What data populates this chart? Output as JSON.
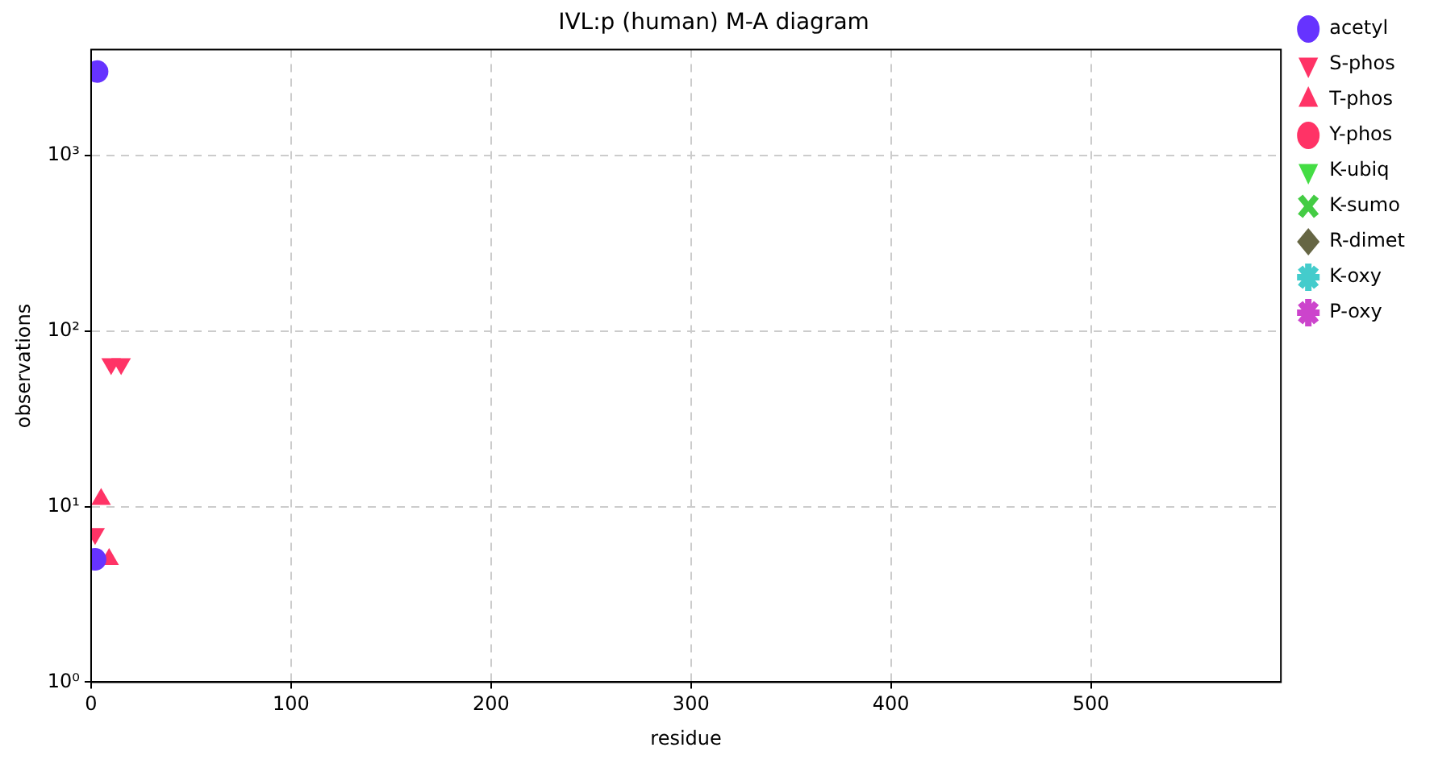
{
  "chart_data": {
    "type": "scatter",
    "title": "IVL:p (human) M-A diagram",
    "xlabel": "residue",
    "ylabel": "observations",
    "xlim": [
      0,
      595
    ],
    "xticks": [
      0,
      100,
      200,
      300,
      400,
      500
    ],
    "ylim": [
      1,
      4000
    ],
    "yticks": [
      {
        "value": 1,
        "label": "10⁰"
      },
      {
        "value": 10,
        "label": "10¹"
      },
      {
        "value": 100,
        "label": "10²"
      },
      {
        "value": 1000,
        "label": "10³"
      }
    ],
    "log": "y",
    "grid": true,
    "legend": "right",
    "series": [
      {
        "name": "acetyl",
        "color": "#6633ff",
        "marker": "circle",
        "x": [
          3,
          2
        ],
        "values": [
          3000,
          5
        ]
      },
      {
        "name": "S-phos",
        "color": "#ff3366",
        "marker": "triangle-down",
        "x": [
          10,
          15,
          2
        ],
        "values": [
          65,
          65,
          7
        ]
      },
      {
        "name": "T-phos",
        "color": "#ff3366",
        "marker": "triangle",
        "x": [
          5,
          9
        ],
        "values": [
          11,
          5
        ]
      },
      {
        "name": "Y-phos",
        "color": "#ff3366",
        "marker": "circle"
      },
      {
        "name": "K-ubiq",
        "color": "#44dd44",
        "marker": "triangle-down"
      },
      {
        "name": "K-sumo",
        "color": "#44cc44",
        "marker": "cross"
      },
      {
        "name": "R-dimet",
        "color": "#666644",
        "marker": "diamond"
      },
      {
        "name": "K-oxy",
        "color": "#44cccc",
        "marker": "star"
      },
      {
        "name": "P-oxy",
        "color": "#cc44cc",
        "marker": "star"
      }
    ]
  }
}
